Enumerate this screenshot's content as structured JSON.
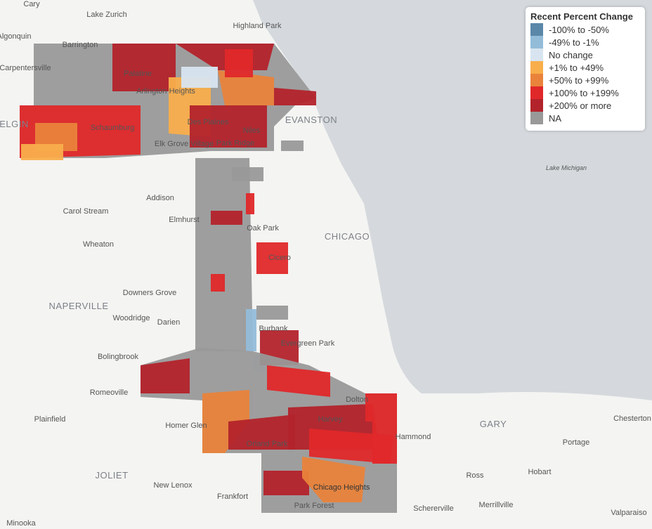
{
  "map": {
    "legend": {
      "title": "Recent Percent Change",
      "items": [
        {
          "label": "-100% to -50%",
          "color": "#5b87a9"
        },
        {
          "label": "-49% to -1%",
          "color": "#93bcd9"
        },
        {
          "label": "No change",
          "color": "#d8e5f0"
        },
        {
          "label": "+1% to +49%",
          "color": "#f9ae4c"
        },
        {
          "label": "+50% to +99%",
          "color": "#e9833b"
        },
        {
          "label": "+100% to +199%",
          "color": "#e0282a"
        },
        {
          "label": "+200% or more",
          "color": "#b3232b"
        },
        {
          "label": "NA",
          "color": "#999999"
        }
      ]
    },
    "places": [
      "Cary",
      "Lake Zurich",
      "Highland Park",
      "Algonquin",
      "Barrington",
      "Carpentersville",
      "Palatine",
      "Arlington Heights",
      "Schaumburg",
      "Des Plaines",
      "Niles",
      "EVANSTON",
      "Elk Grove Village",
      "Park Ridge",
      "Lake Michigan",
      "Addison",
      "Carol Stream",
      "Elmhurst",
      "Oak Park",
      "CHICAGO",
      "Wheaton",
      "Cicero",
      "Downers Grove",
      "NAPERVILLE",
      "Woodridge",
      "Darien",
      "Burbank",
      "Evergreen Park",
      "Bolingbrook",
      "Romeoville",
      "Plainfield",
      "Homer Glen",
      "Orland Park",
      "Harvey",
      "Dolton",
      "Hammond",
      "GARY",
      "Chesterton",
      "Portage",
      "JOLIET",
      "New Lenox",
      "Frankfort",
      "Park Forest",
      "Chicago Heights",
      "Ross",
      "Merrillville",
      "Hobart",
      "Schererville",
      "Valparaiso",
      "Minooka",
      "ELGIN"
    ]
  }
}
